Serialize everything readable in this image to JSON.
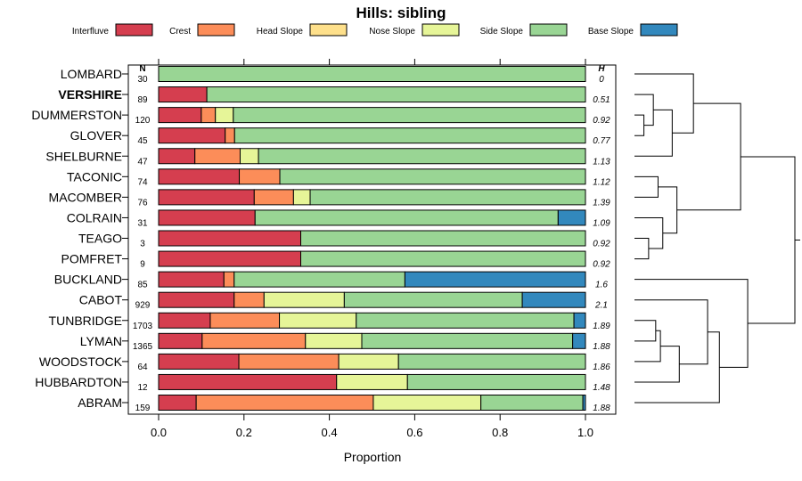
{
  "chart_data": {
    "type": "bar",
    "subtype": "stacked-horizontal-proportion",
    "title": "Hills: sibling",
    "xlabel": "Proportion",
    "ylabel": "",
    "xlim": [
      0,
      1
    ],
    "xticks": [
      "0.0",
      "0.2",
      "0.4",
      "0.6",
      "0.8",
      "1.0"
    ],
    "xtick_values": [
      0,
      0.2,
      0.4,
      0.6,
      0.8,
      1.0
    ],
    "n_header": "N",
    "h_header": "H",
    "legend_position": "top",
    "series": [
      {
        "name": "Interfluve",
        "color": "#D53E4F"
      },
      {
        "name": "Crest",
        "color": "#FC8D59"
      },
      {
        "name": "Head Slope",
        "color": "#FEE08B"
      },
      {
        "name": "Nose Slope",
        "color": "#E6F598"
      },
      {
        "name": "Side Slope",
        "color": "#99D594"
      },
      {
        "name": "Base Slope",
        "color": "#3288BD"
      }
    ],
    "rows": [
      {
        "name": "LOMBARD",
        "bold": false,
        "n": "30",
        "h": "0",
        "values": [
          0,
          0,
          0,
          0,
          1.0,
          0
        ]
      },
      {
        "name": "VERSHIRE",
        "bold": true,
        "n": "89",
        "h": "0.51",
        "values": [
          0.113,
          0,
          0,
          0,
          0.887,
          0
        ]
      },
      {
        "name": "DUMMERSTON",
        "bold": false,
        "n": "120",
        "h": "0.92",
        "values": [
          0.1,
          0.033,
          0,
          0.042,
          0.825,
          0
        ]
      },
      {
        "name": "GLOVER",
        "bold": false,
        "n": "45",
        "h": "0.77",
        "values": [
          0.156,
          0.022,
          0,
          0,
          0.822,
          0
        ]
      },
      {
        "name": "SHELBURNE",
        "bold": false,
        "n": "47",
        "h": "1.13",
        "values": [
          0.085,
          0.106,
          0,
          0.043,
          0.766,
          0
        ]
      },
      {
        "name": "TACONIC",
        "bold": false,
        "n": "74",
        "h": "1.12",
        "values": [
          0.189,
          0.095,
          0,
          0,
          0.716,
          0
        ]
      },
      {
        "name": "MACOMBER",
        "bold": false,
        "n": "76",
        "h": "1.39",
        "values": [
          0.224,
          0.092,
          0,
          0.039,
          0.645,
          0
        ]
      },
      {
        "name": "COLRAIN",
        "bold": false,
        "n": "31",
        "h": "1.09",
        "values": [
          0.226,
          0,
          0,
          0,
          0.71,
          0.064
        ]
      },
      {
        "name": "TEAGO",
        "bold": false,
        "n": "3",
        "h": "0.92",
        "values": [
          0.333,
          0,
          0,
          0,
          0.667,
          0
        ]
      },
      {
        "name": "POMFRET",
        "bold": false,
        "n": "9",
        "h": "0.92",
        "values": [
          0.333,
          0,
          0,
          0,
          0.667,
          0
        ]
      },
      {
        "name": "BUCKLAND",
        "bold": false,
        "n": "85",
        "h": "1.6",
        "values": [
          0.153,
          0.024,
          0,
          0,
          0.4,
          0.423
        ]
      },
      {
        "name": "CABOT",
        "bold": false,
        "n": "929",
        "h": "2.1",
        "values": [
          0.177,
          0.07,
          0,
          0.188,
          0.417,
          0.148
        ]
      },
      {
        "name": "TUNBRIDGE",
        "bold": false,
        "n": "1703",
        "h": "1.89",
        "values": [
          0.121,
          0.162,
          0,
          0.18,
          0.51,
          0.027
        ]
      },
      {
        "name": "LYMAN",
        "bold": false,
        "n": "1365",
        "h": "1.88",
        "values": [
          0.102,
          0.242,
          0,
          0.132,
          0.494,
          0.03
        ]
      },
      {
        "name": "WOODSTOCK",
        "bold": false,
        "n": "64",
        "h": "1.86",
        "values": [
          0.188,
          0.234,
          0,
          0.14,
          0.438,
          0
        ]
      },
      {
        "name": "HUBBARDTON",
        "bold": false,
        "n": "12",
        "h": "1.48",
        "values": [
          0.417,
          0,
          0,
          0.166,
          0.417,
          0
        ]
      },
      {
        "name": "ABRAM",
        "bold": false,
        "n": "159",
        "h": "1.88",
        "values": [
          0.088,
          0.415,
          0,
          0.252,
          0.239,
          0.006
        ]
      }
    ],
    "dendrogram": {
      "leaf_order": [
        "LOMBARD",
        "VERSHIRE",
        "DUMMERSTON",
        "GLOVER",
        "SHELBURNE",
        "TACONIC",
        "MACOMBER",
        "COLRAIN",
        "TEAGO",
        "POMFRET",
        "BUCKLAND",
        "CABOT",
        "TUNBRIDGE",
        "LYMAN",
        "WOODSTOCK",
        "HUBBARDTON",
        "ABRAM"
      ],
      "merges": [
        {
          "a": "L2",
          "b": "L3",
          "height": 0.04
        },
        {
          "a": "L1",
          "b": "N0",
          "height": 0.08
        },
        {
          "a": "N1",
          "b": "L4",
          "height": 0.16
        },
        {
          "a": "L0",
          "b": "N2",
          "height": 0.25
        },
        {
          "a": "L5",
          "b": "L6",
          "height": 0.1
        },
        {
          "a": "L8",
          "b": "L9",
          "height": 0.06
        },
        {
          "a": "L7",
          "b": "N5",
          "height": 0.12
        },
        {
          "a": "N4",
          "b": "N6",
          "height": 0.18
        },
        {
          "a": "N3",
          "b": "N7",
          "height": 0.45
        },
        {
          "a": "L12",
          "b": "L13",
          "height": 0.09
        },
        {
          "a": "N9",
          "b": "L14",
          "height": 0.11
        },
        {
          "a": "N10",
          "b": "L15",
          "height": 0.19
        },
        {
          "a": "L11",
          "b": "N11",
          "height": 0.31
        },
        {
          "a": "N12",
          "b": "L16",
          "height": 0.36
        },
        {
          "a": "L10",
          "b": "N13",
          "height": 0.48
        },
        {
          "a": "N8",
          "b": "N14",
          "height": 0.68
        }
      ]
    }
  }
}
